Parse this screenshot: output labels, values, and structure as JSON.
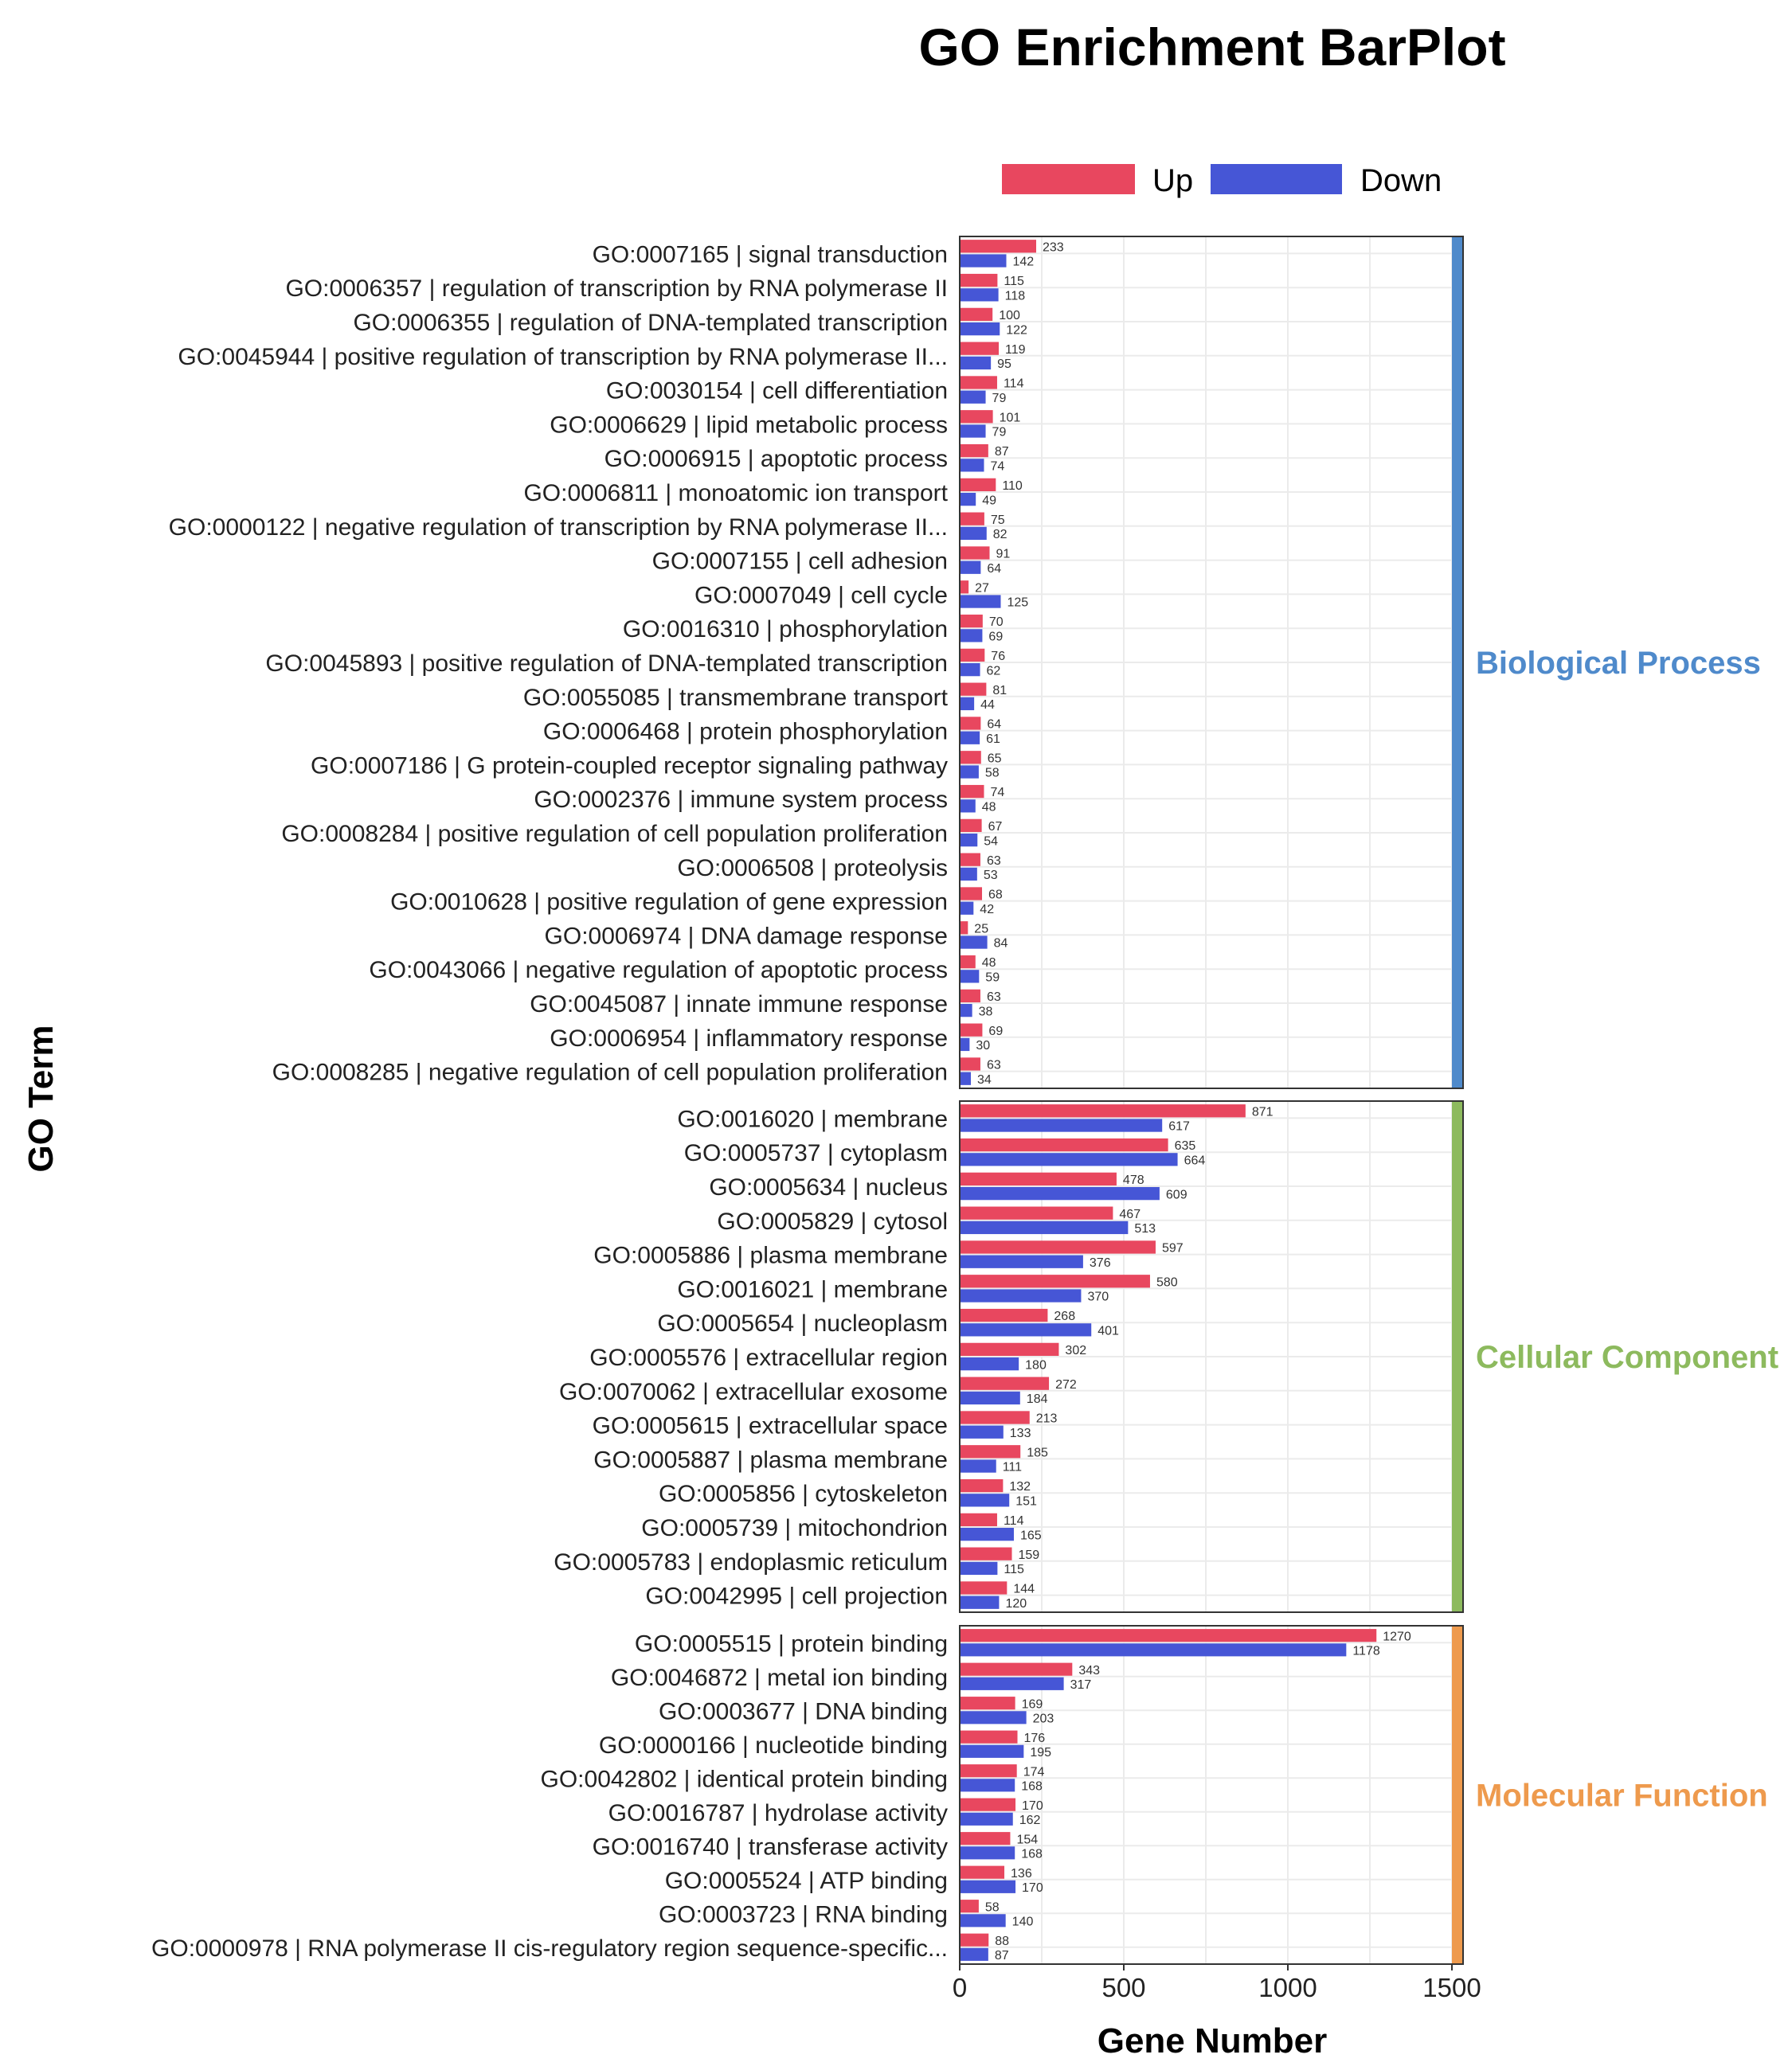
{
  "chart_data": {
    "type": "bar",
    "orientation": "horizontal",
    "title": "GO Enrichment BarPlot",
    "xlabel": "Gene Number",
    "ylabel": "GO Term",
    "xlim": [
      0,
      1500
    ],
    "xticks": [
      0,
      500,
      1000,
      1500
    ],
    "grid": true,
    "legend": {
      "placement": "top",
      "entries": [
        {
          "name": "Up",
          "color": "#e8475f"
        },
        {
          "name": "Down",
          "color": "#4656d6"
        }
      ]
    },
    "panels": [
      {
        "name": "Biological Process",
        "color": "#4f8acb",
        "categories": [
          "GO:0007165 | signal transduction",
          "GO:0006357 | regulation of transcription by RNA polymerase II",
          "GO:0006355 | regulation of DNA-templated transcription",
          "GO:0045944 | positive regulation of transcription by RNA polymerase II...",
          "GO:0030154 | cell differentiation",
          "GO:0006629 | lipid metabolic process",
          "GO:0006915 | apoptotic process",
          "GO:0006811 | monoatomic ion transport",
          "GO:0000122 | negative regulation of transcription by RNA polymerase II...",
          "GO:0007155 | cell adhesion",
          "GO:0007049 | cell cycle",
          "GO:0016310 | phosphorylation",
          "GO:0045893 | positive regulation of DNA-templated transcription",
          "GO:0055085 | transmembrane transport",
          "GO:0006468 | protein phosphorylation",
          "GO:0007186 | G protein-coupled receptor signaling pathway",
          "GO:0002376 | immune system process",
          "GO:0008284 | positive regulation of cell population proliferation",
          "GO:0006508 | proteolysis",
          "GO:0010628 | positive regulation of gene expression",
          "GO:0006974 | DNA damage response",
          "GO:0043066 | negative regulation of apoptotic process",
          "GO:0045087 | innate immune response",
          "GO:0006954 | inflammatory response",
          "GO:0008285 | negative regulation of cell population proliferation"
        ],
        "series": [
          {
            "name": "Up",
            "values": [
              233,
              115,
              100,
              119,
              114,
              101,
              87,
              110,
              75,
              91,
              27,
              70,
              76,
              81,
              64,
              65,
              74,
              67,
              63,
              68,
              25,
              48,
              63,
              69,
              63
            ]
          },
          {
            "name": "Down",
            "values": [
              142,
              118,
              122,
              95,
              79,
              79,
              74,
              49,
              82,
              64,
              125,
              69,
              62,
              44,
              61,
              58,
              48,
              54,
              53,
              42,
              84,
              59,
              38,
              30,
              34
            ]
          }
        ]
      },
      {
        "name": "Cellular Component",
        "color": "#8dba5e",
        "categories": [
          "GO:0016020 | membrane",
          "GO:0005737 | cytoplasm",
          "GO:0005634 | nucleus",
          "GO:0005829 | cytosol",
          "GO:0005886 | plasma membrane",
          "GO:0016021 | membrane",
          "GO:0005654 | nucleoplasm",
          "GO:0005576 | extracellular region",
          "GO:0070062 | extracellular exosome",
          "GO:0005615 | extracellular space",
          "GO:0005887 | plasma membrane",
          "GO:0005856 | cytoskeleton",
          "GO:0005739 | mitochondrion",
          "GO:0005783 | endoplasmic reticulum",
          "GO:0042995 | cell projection"
        ],
        "series": [
          {
            "name": "Up",
            "values": [
              871,
              635,
              478,
              467,
              597,
              580,
              268,
              302,
              272,
              213,
              185,
              132,
              114,
              159,
              144
            ]
          },
          {
            "name": "Down",
            "values": [
              617,
              664,
              609,
              513,
              376,
              370,
              401,
              180,
              184,
              133,
              111,
              151,
              165,
              115,
              120
            ]
          }
        ]
      },
      {
        "name": "Molecular Function",
        "color": "#ee9a4d",
        "categories": [
          "GO:0005515 | protein binding",
          "GO:0046872 | metal ion binding",
          "GO:0003677 | DNA binding",
          "GO:0000166 | nucleotide binding",
          "GO:0042802 | identical protein binding",
          "GO:0016787 | hydrolase activity",
          "GO:0016740 | transferase activity",
          "GO:0005524 | ATP binding",
          "GO:0003723 | RNA binding",
          "GO:0000978 | RNA polymerase II cis-regulatory region sequence-specific..."
        ],
        "series": [
          {
            "name": "Up",
            "values": [
              1270,
              343,
              169,
              176,
              174,
              170,
              154,
              136,
              58,
              88
            ]
          },
          {
            "name": "Down",
            "values": [
              1178,
              317,
              203,
              195,
              168,
              162,
              168,
              170,
              140,
              87
            ]
          }
        ]
      }
    ]
  }
}
